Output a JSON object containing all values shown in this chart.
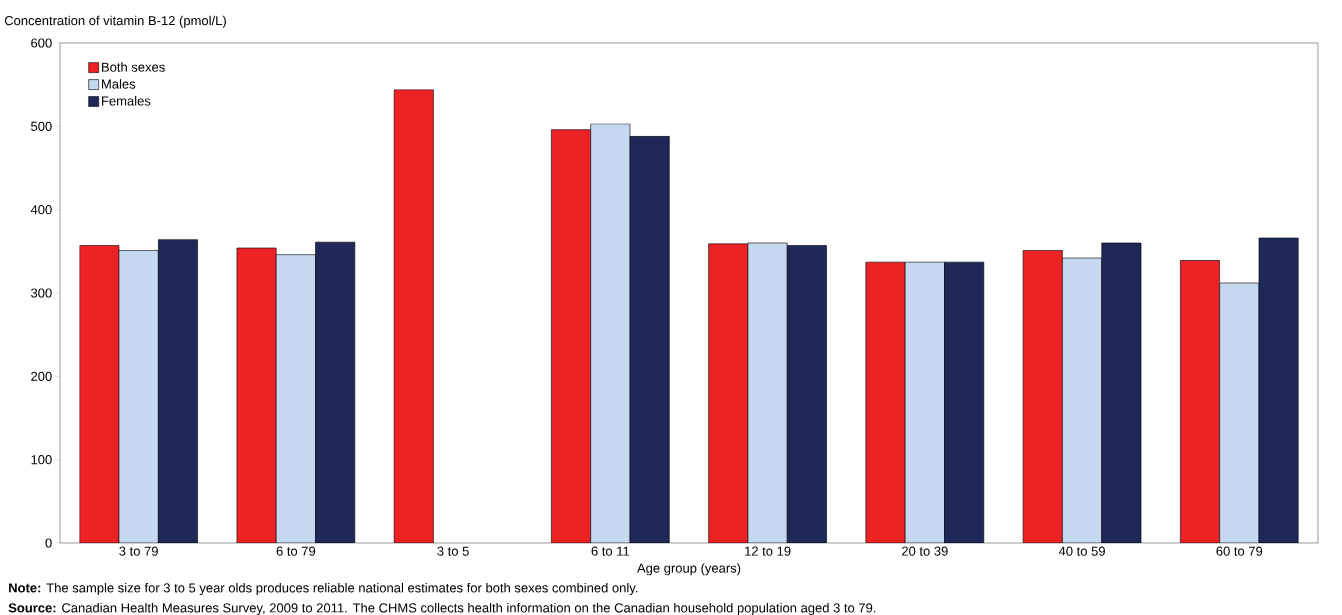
{
  "chart_data": {
    "type": "bar",
    "ylabel": "Concentration of vitamin B-12 (pmol/L)",
    "xlabel": "Age group (years)",
    "categories": [
      "3 to 79",
      "6 to 79",
      "3 to 5",
      "6 to 11",
      "12 to 19",
      "20 to 39",
      "40 to 59",
      "60 to 79"
    ],
    "series": [
      {
        "name": "Both sexes",
        "color": "#ed2224",
        "values": [
          357,
          354,
          544,
          496,
          359,
          337,
          351,
          339
        ]
      },
      {
        "name": "Males",
        "color": "#c5d8f0",
        "values": [
          351,
          346,
          null,
          503,
          360,
          337,
          342,
          312
        ]
      },
      {
        "name": "Females",
        "color": "#1e2859",
        "values": [
          364,
          361,
          null,
          488,
          357,
          337,
          360,
          366
        ]
      }
    ],
    "ylim": [
      0,
      600
    ],
    "yticks": [
      0,
      100,
      200,
      300,
      400,
      500,
      600
    ],
    "grid": false,
    "legend": "top left",
    "annotations": [
      "**Note:** The sample size for 3 to 5 year olds produces reliable national estimates for both sexes combined only.",
      "**Source:** Canadian Health Measures Survey, 2009 to 2011. The CHMS collects health information on the Canadian household population aged 3 to 79."
    ]
  }
}
